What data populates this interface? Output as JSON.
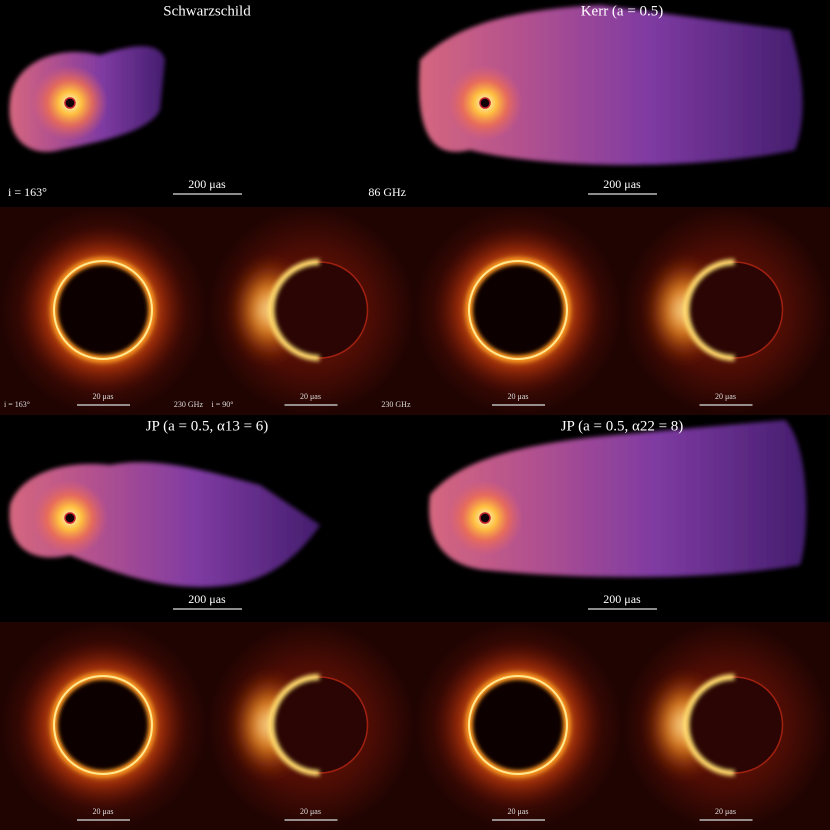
{
  "jet_panels": [
    {
      "title": "Schwarzschild",
      "scale_label": "200 μas"
    },
    {
      "title": "Kerr (a = 0.5)",
      "scale_label": "200 μas"
    },
    {
      "title": "JP (a = 0.5, α13 = 6)",
      "scale_label": "200 μas"
    },
    {
      "title": "JP (a = 0.5, α22 = 8)",
      "scale_label": "200 μas"
    }
  ],
  "jet_annotations": {
    "inclination": "i = 163°",
    "frequency": "86 GHz"
  },
  "ring_panels": [
    {
      "scale_label": "20 μas"
    },
    {
      "scale_label": "20 μas"
    },
    {
      "scale_label": "20 μas"
    },
    {
      "scale_label": "20 μas"
    },
    {
      "scale_label": "20 μas"
    },
    {
      "scale_label": "20 μas"
    },
    {
      "scale_label": "20 μas"
    },
    {
      "scale_label": "20 μas"
    }
  ],
  "ring_annotations": [
    {
      "inclination": "i = 163°",
      "frequency": "230 GHz"
    },
    {
      "inclination": "i = 90°",
      "frequency": "230 GHz"
    }
  ]
}
